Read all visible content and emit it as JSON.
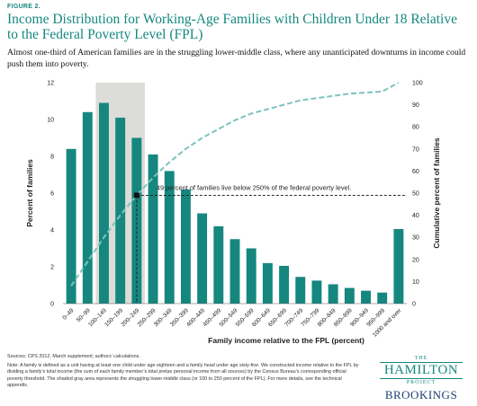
{
  "figure_label": "FIGURE 2.",
  "chart_data": {
    "type": "bar",
    "title": "Income Distribution for Working-Age Families with Children Under 18 Relative to the Federal Poverty Level (FPL)",
    "subtitle": "Almost one-third of American families are in the struggling lower-middle class, where any unanticipated downturns in income could push them into poverty.",
    "x_label": "Family income relative to the FPL (percent)",
    "y_label": "Percent of families",
    "y2_label": "Cumulative percent of families",
    "categories": [
      "0–49",
      "50–99",
      "100–149",
      "150–199",
      "200–249",
      "250–299",
      "300–349",
      "350–399",
      "400–449",
      "450–499",
      "500–549",
      "550–599",
      "600–649",
      "650–699",
      "700–749",
      "750–799",
      "800–849",
      "850–899",
      "900–949",
      "950–999",
      "1000 and over"
    ],
    "series": [
      {
        "type": "bar",
        "color": "#15877f",
        "values": [
          8.4,
          10.4,
          10.9,
          10.1,
          9.0,
          8.1,
          7.2,
          6.2,
          4.9,
          4.2,
          3.5,
          3.0,
          2.2,
          2.05,
          1.45,
          1.25,
          1.05,
          0.85,
          0.7,
          0.6,
          4.05
        ]
      },
      {
        "type": "line",
        "axis": "y2",
        "color": "#7cc3bf",
        "values": [
          8,
          19,
          30,
          40,
          49,
          57,
          64,
          70,
          75,
          79,
          83,
          86,
          88,
          90,
          92,
          93,
          94,
          95,
          95.5,
          96,
          100
        ]
      }
    ],
    "ylim": [
      0,
      12
    ],
    "yticks": [
      0,
      2,
      4,
      6,
      8,
      10,
      12
    ],
    "y2lim": [
      0,
      100
    ],
    "y2ticks": [
      0,
      10,
      20,
      30,
      40,
      50,
      60,
      70,
      80,
      90,
      100
    ],
    "shaded_range": [
      "100–149",
      "200–249"
    ],
    "shade_color": "#dcdcd8",
    "annotation": {
      "text": "49 percent of families live below 250% of the federal poverty level.",
      "x": "200–249",
      "y": 49
    }
  },
  "footer": {
    "sources": "Sources: CPS 2012, March supplement; authors’ calculations.",
    "note": "Note: A family is defined as a unit having at least one child under age eighteen and a family head under age sixty-five. We constructed income relative to the FPL by dividing a family’s total income (the sum of each family member’s total pretax personal income from all sources) by the Census Bureau’s corresponding official poverty threshold. The shaded gray area represents the struggling lower-middle class (or 100 to 250 percent of the FPL). For more details, see the technical appendix."
  },
  "logo": {
    "the": "THE",
    "hamilton": "HAMILTON",
    "project": "PROJECT",
    "brookings": "BROOKINGS"
  }
}
